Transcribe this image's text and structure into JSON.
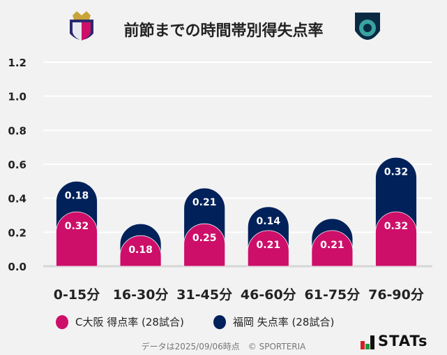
{
  "title": "前節までの時間帯別得失点率",
  "chart_data": {
    "type": "bar",
    "stacked": true,
    "categories": [
      "0-15分",
      "16-30分",
      "31-45分",
      "46-60分",
      "61-75分",
      "76-90分"
    ],
    "series": [
      {
        "name": "C大阪 得点率 (28試合)",
        "color": "#cd0f69",
        "values": [
          0.32,
          0.18,
          0.25,
          0.21,
          0.21,
          0.32
        ],
        "labels": [
          "0.32",
          "0.18",
          "0.25",
          "0.21",
          "0.21",
          "0.32"
        ]
      },
      {
        "name": "福岡 失点率 (28試合)",
        "color": "#00215a",
        "values": [
          0.18,
          0.07,
          0.21,
          0.14,
          0.07,
          0.32
        ],
        "labels": [
          "0.18",
          "",
          "0.21",
          "0.14",
          "",
          "0.32"
        ]
      }
    ],
    "yticks": [
      "0.0",
      "0.2",
      "0.4",
      "0.6",
      "0.8",
      "1.0",
      "1.2"
    ],
    "ylim": [
      0,
      1.2
    ],
    "grid": true,
    "legend": "bottom"
  },
  "legend": {
    "home": "C大阪 得点率 (28試合)",
    "away": "福岡 失点率 (28試合)"
  },
  "footer": "データは2025/09/06時点　© SPORTERIA",
  "brand": "STATs"
}
